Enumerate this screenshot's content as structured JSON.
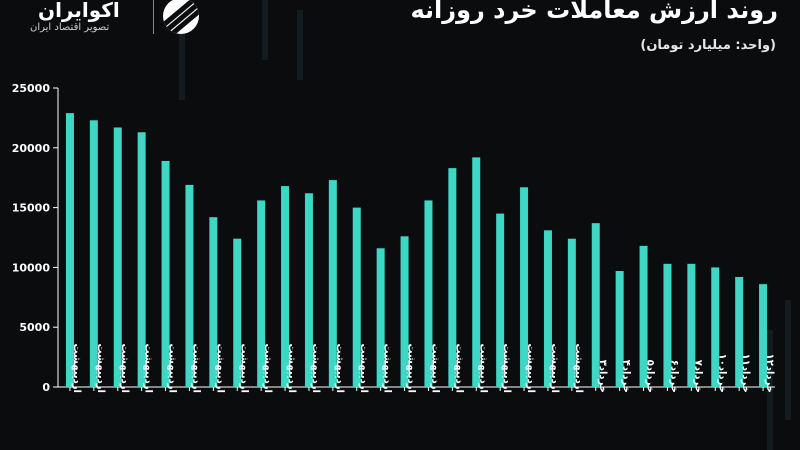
{
  "header": {
    "title": "روند ارزش معاملات خرد روزانه",
    "subtitle": "(واحد: میلیارد تومان)"
  },
  "logo": {
    "name": "اکوایران",
    "tagline": "تصویر اقتصاد ایران",
    "icon": "ecoiran-logo-icon"
  },
  "colors": {
    "background": "#0b0c0e",
    "bar": "#3ed6c4",
    "axis": "#ffffff"
  },
  "chart_data": {
    "type": "bar",
    "title": "روند ارزش معاملات خرد روزانه",
    "ylabel": "(واحد: میلیارد تومان)",
    "ylim": [
      0,
      25000
    ],
    "yticks": [
      0,
      5000,
      10000,
      15000,
      20000,
      25000
    ],
    "grid": false,
    "categories": [
      "اردیبهشت",
      "اردیبهشت",
      "اردیبهشت",
      "اردیبهشت",
      "اردیبهشت",
      "اردیبهشت",
      "اردیبهشت",
      "اردیبهشت",
      "اردیبهشت",
      "اردیبهشت",
      "اردیبهشت",
      "اردیبهشت",
      "اردیبهشت",
      "اردیبهشت",
      "اردیبهشت",
      "اردیبهشت",
      "اردیبهشت",
      "اردیبهشت",
      "اردیبهشت",
      "اردیبهشت",
      "اردیبهشت",
      "اردیبهشت",
      "خرداد۳",
      "خرداد۴",
      "خرداد۵",
      "خرداد۶",
      "خرداد۷",
      "خرداد۱۰",
      "خرداد۱۱",
      "خرداد۱۲"
    ],
    "values": [
      22900,
      22300,
      21700,
      21300,
      18900,
      16900,
      14200,
      12400,
      15600,
      16800,
      16200,
      17300,
      15000,
      11600,
      12600,
      15600,
      18300,
      19200,
      14500,
      16700,
      13100,
      12400,
      13700,
      9700,
      11800,
      10300,
      10300,
      10000,
      9200,
      8600
    ]
  }
}
